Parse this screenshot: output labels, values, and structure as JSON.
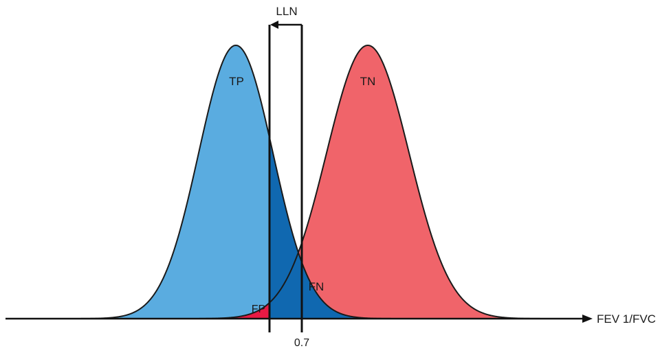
{
  "labels": {
    "tp": "TP",
    "tn": "TN",
    "fp": "FP",
    "fn": "FN",
    "lln": "LLN",
    "cutoff": "0.7",
    "axis": "FEV 1/FVC"
  },
  "colors": {
    "tp_fill": "#5aace0",
    "tn_fill": "#f0646a",
    "fp_fill": "#e81a44",
    "fn_fill": "#1068b0",
    "outline": "#1a1a1a",
    "axis": "#111111"
  }
}
